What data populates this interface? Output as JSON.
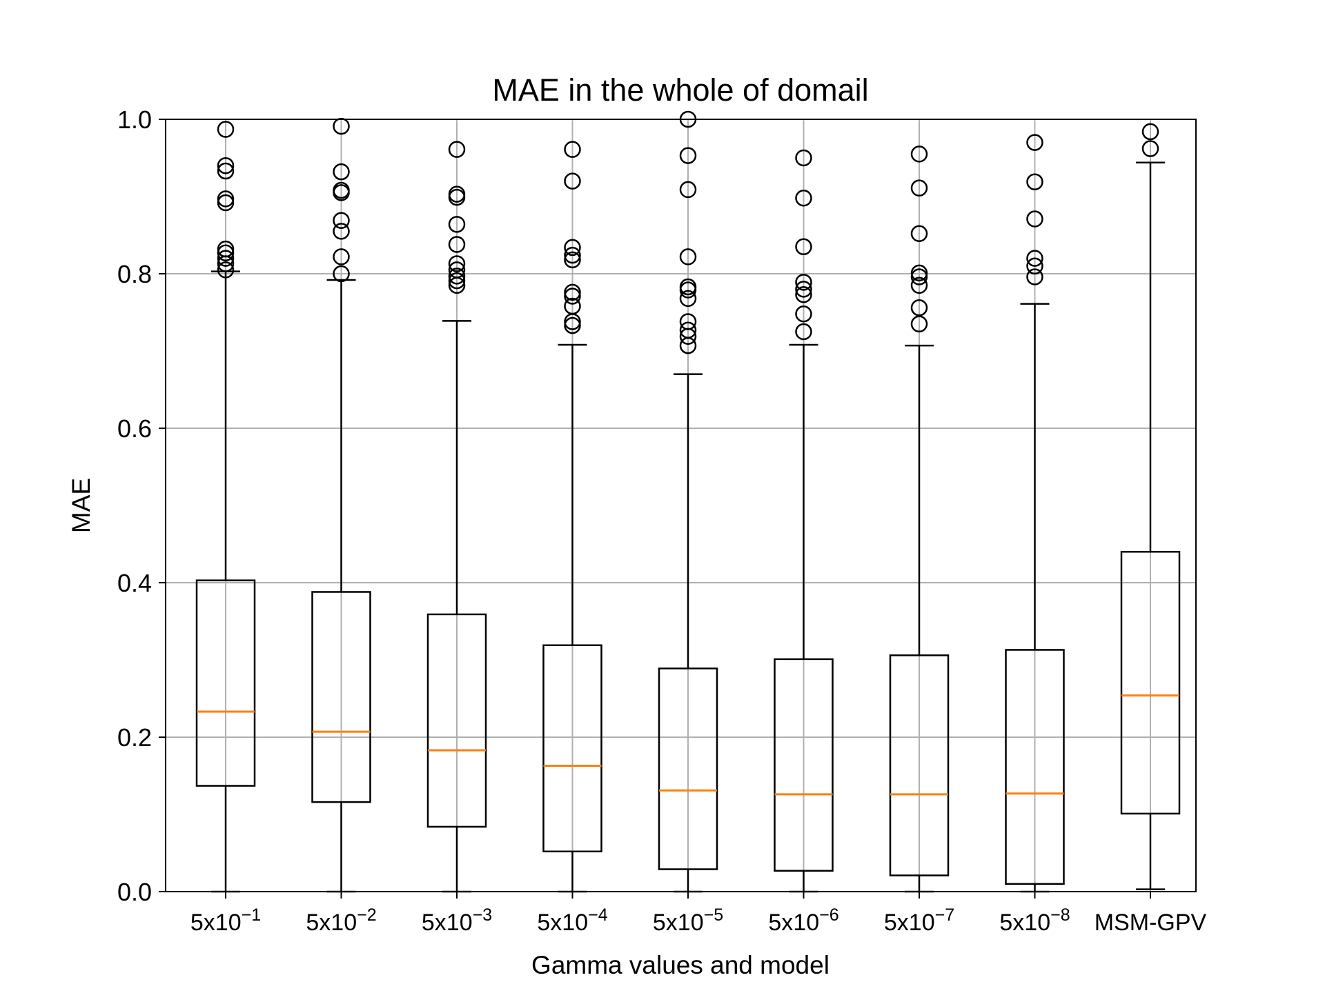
{
  "chart_data": {
    "type": "box",
    "title": "MAE in the whole of domail",
    "xlabel": "Gamma values and model",
    "ylabel": "MAE",
    "ylim": [
      0.0,
      1.0
    ],
    "yticks": [
      "0.0",
      "0.2",
      "0.4",
      "0.6",
      "0.8",
      "1.0"
    ],
    "ytick_values": [
      0.0,
      0.2,
      0.4,
      0.6,
      0.8,
      1.0
    ],
    "grid": true,
    "categories": [
      {
        "base": "5x10",
        "exp": "−1"
      },
      {
        "base": "5x10",
        "exp": "−2"
      },
      {
        "base": "5x10",
        "exp": "−3"
      },
      {
        "base": "5x10",
        "exp": "−4"
      },
      {
        "base": "5x10",
        "exp": "−5"
      },
      {
        "base": "5x10",
        "exp": "−6"
      },
      {
        "base": "5x10",
        "exp": "−7"
      },
      {
        "base": "5x10",
        "exp": "−8"
      },
      {
        "base": "MSM-GPV",
        "exp": ""
      }
    ],
    "boxes": [
      {
        "whislo": 0.0,
        "q1": 0.137,
        "median": 0.233,
        "q3": 0.403,
        "whishi": 0.803,
        "fliers": [
          0.987,
          0.94,
          0.933,
          0.897,
          0.892,
          0.832,
          0.827,
          0.82,
          0.813,
          0.805
        ]
      },
      {
        "whislo": 0.0,
        "q1": 0.116,
        "median": 0.207,
        "q3": 0.388,
        "whishi": 0.792,
        "fliers": [
          0.991,
          0.932,
          0.908,
          0.905,
          0.869,
          0.855,
          0.822,
          0.8
        ]
      },
      {
        "whislo": 0.0,
        "q1": 0.084,
        "median": 0.183,
        "q3": 0.359,
        "whishi": 0.739,
        "fliers": [
          0.961,
          0.903,
          0.899,
          0.864,
          0.838,
          0.813,
          0.805,
          0.797,
          0.791,
          0.785
        ]
      },
      {
        "whislo": 0.0,
        "q1": 0.052,
        "median": 0.163,
        "q3": 0.319,
        "whishi": 0.708,
        "fliers": [
          0.961,
          0.92,
          0.834,
          0.824,
          0.818,
          0.776,
          0.771,
          0.758,
          0.738,
          0.733
        ]
      },
      {
        "whislo": 0.0,
        "q1": 0.029,
        "median": 0.131,
        "q3": 0.289,
        "whishi": 0.67,
        "fliers": [
          1.0,
          0.953,
          0.909,
          0.822,
          0.783,
          0.779,
          0.768,
          0.738,
          0.727,
          0.719,
          0.707
        ]
      },
      {
        "whislo": 0.0,
        "q1": 0.027,
        "median": 0.126,
        "q3": 0.301,
        "whishi": 0.708,
        "fliers": [
          0.95,
          0.898,
          0.835,
          0.789,
          0.78,
          0.773,
          0.748,
          0.725
        ]
      },
      {
        "whislo": 0.0,
        "q1": 0.021,
        "median": 0.126,
        "q3": 0.306,
        "whishi": 0.707,
        "fliers": [
          0.955,
          0.911,
          0.852,
          0.801,
          0.796,
          0.785,
          0.756,
          0.735
        ]
      },
      {
        "whislo": 0.0,
        "q1": 0.01,
        "median": 0.127,
        "q3": 0.313,
        "whishi": 0.761,
        "fliers": [
          0.97,
          0.919,
          0.871,
          0.82,
          0.81,
          0.796
        ]
      },
      {
        "whislo": 0.003,
        "q1": 0.101,
        "median": 0.254,
        "q3": 0.44,
        "whishi": 0.944,
        "fliers": [
          0.984,
          0.962
        ]
      }
    ],
    "colors": {
      "box": "#000000",
      "median": "#ff7f0e",
      "grid": "#b0b0b0",
      "flier": "#000000"
    }
  }
}
